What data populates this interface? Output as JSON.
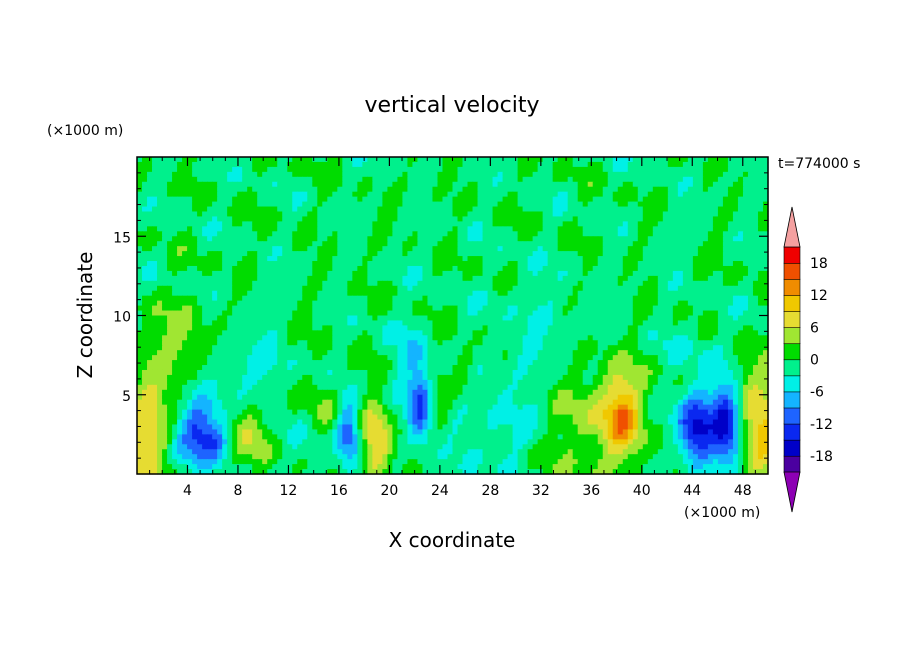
{
  "chart_data": {
    "type": "heatmap",
    "title": "vertical velocity",
    "time_label": "t=774000 s",
    "xlabel": "X coordinate",
    "ylabel": "Z coordinate",
    "x_unit": "(×1000 m)",
    "z_unit": "(×1000 m)",
    "xlim": [
      0,
      50
    ],
    "zlim": [
      0,
      20
    ],
    "x_ticks": [
      4,
      8,
      12,
      16,
      20,
      24,
      28,
      32,
      36,
      40,
      44,
      48
    ],
    "x_tick_labels": [
      "4",
      "8",
      "12",
      "16",
      "20",
      "24",
      "28",
      "32",
      "36",
      "40",
      "44",
      "48"
    ],
    "z_ticks": [
      5,
      10,
      15
    ],
    "z_tick_labels": [
      "5",
      "10",
      "15"
    ],
    "colorbar": {
      "levels": [
        -21,
        -18,
        -15,
        -12,
        -9,
        -6,
        -3,
        0,
        3,
        6,
        9,
        12,
        15,
        18,
        21
      ],
      "labels": [
        "-18",
        "-12",
        "-6",
        "0",
        "6",
        "12",
        "18"
      ],
      "label_values": [
        -18,
        -12,
        -6,
        0,
        6,
        12,
        18
      ],
      "colors": [
        "#8d00b4",
        "#4b00a0",
        "#0000c8",
        "#0a28f0",
        "#1e64ff",
        "#14b4ff",
        "#00f0e6",
        "#00f08c",
        "#00dc00",
        "#a0e632",
        "#e6dc32",
        "#f0c800",
        "#f08c00",
        "#f05000",
        "#f00000",
        "#f4a0a0"
      ],
      "extend": "both"
    },
    "features": [
      {
        "x": 0.5,
        "z": 2.7,
        "sx": 1.3,
        "sz": 2.3,
        "w": 10
      },
      {
        "x": 49.7,
        "z": 2.7,
        "sx": 1.3,
        "sz": 2.3,
        "w": 10
      },
      {
        "x": 5.0,
        "z": 2.6,
        "sx": 1.2,
        "sz": 1.4,
        "w": -12
      },
      {
        "x": 6.5,
        "z": 2.0,
        "sx": 0.8,
        "sz": 0.8,
        "w": -6
      },
      {
        "x": 9.2,
        "z": 2.6,
        "sx": 1.2,
        "sz": 1.6,
        "w": 8
      },
      {
        "x": 12.2,
        "z": 1.8,
        "sx": 1.4,
        "sz": 1.4,
        "w": -3
      },
      {
        "x": 15.0,
        "z": 3.6,
        "sx": 1.0,
        "sz": 1.8,
        "w": 4
      },
      {
        "x": 16.8,
        "z": 2.6,
        "sx": 0.7,
        "sz": 1.6,
        "w": -12
      },
      {
        "x": 19.0,
        "z": 2.2,
        "sx": 0.9,
        "sz": 1.9,
        "w": 10
      },
      {
        "x": 22.5,
        "z": 4.4,
        "sx": 0.7,
        "sz": 1.7,
        "w": -12
      },
      {
        "x": 21.5,
        "z": 7.0,
        "sx": 1.2,
        "sz": 2.2,
        "w": -3
      },
      {
        "x": 23.8,
        "z": 4.6,
        "sx": 0.8,
        "sz": 1.4,
        "w": 4
      },
      {
        "x": 25.8,
        "z": 6.5,
        "sx": 0.6,
        "sz": 1.2,
        "w": 4
      },
      {
        "x": 29.0,
        "z": 2.8,
        "sx": 3.0,
        "sz": 2.6,
        "w": -3
      },
      {
        "x": 36.0,
        "z": 2.4,
        "sx": 2.8,
        "sz": 2.4,
        "w": 5
      },
      {
        "x": 38.5,
        "z": 3.6,
        "sx": 1.0,
        "sz": 1.6,
        "w": 10
      },
      {
        "x": 37.8,
        "z": 5.5,
        "sx": 2.2,
        "sz": 1.6,
        "w": 3
      },
      {
        "x": 44.3,
        "z": 2.6,
        "sx": 1.0,
        "sz": 1.5,
        "w": -14
      },
      {
        "x": 46.8,
        "z": 2.8,
        "sx": 0.8,
        "sz": 1.6,
        "w": -13
      },
      {
        "x": 45.5,
        "z": 4.5,
        "sx": 1.8,
        "sz": 1.4,
        "w": -5
      },
      {
        "x": 44.0,
        "z": 8.0,
        "sx": 2.0,
        "sz": 1.2,
        "w": -2
      },
      {
        "x": 48.2,
        "z": 5.8,
        "sx": 0.8,
        "sz": 1.4,
        "w": 4
      },
      {
        "x": 1.5,
        "z": 8.2,
        "sx": 1.2,
        "sz": 1.8,
        "w": 3
      },
      {
        "x": 4.0,
        "z": 8.5,
        "sx": 1.5,
        "sz": 2.0,
        "w": 3
      },
      {
        "x": 9.0,
        "z": 6.0,
        "sx": 2.0,
        "sz": 2.0,
        "w": -4
      },
      {
        "x": 32.0,
        "z": 9.5,
        "sx": 3.0,
        "sz": 2.5,
        "w": -2
      }
    ]
  }
}
